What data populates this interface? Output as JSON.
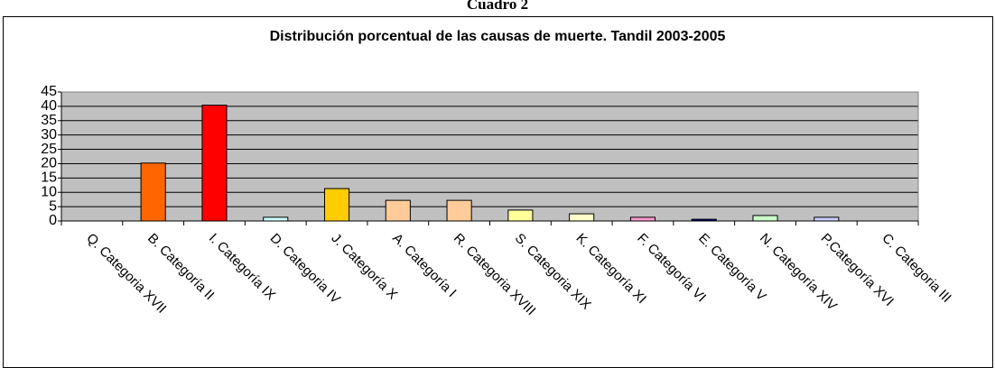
{
  "header": "Cuadro 2",
  "chart_data": {
    "type": "bar",
    "title": "Distribución porcentual de las causas de muerte. Tandil 2003-2005",
    "categories": [
      "Q. Categoria XVII",
      "B. Categoría II",
      "I. Categoría IX",
      "D. Categoria IV",
      "J. Categoría X",
      "A. Categoría I",
      "R. Categoria XVIII",
      "S. Categoria XIX",
      "K. Categoría XI",
      "F. Categoría VI",
      "E. Categoría V",
      "N. Categoría XIV",
      "P.Categoría XVI",
      "C. Categoria III"
    ],
    "values": [
      0,
      20.2,
      40.4,
      1.3,
      11.3,
      7.2,
      7.2,
      3.8,
      2.5,
      1.3,
      0.6,
      1.9,
      1.3,
      0
    ],
    "colors": [
      "#993366",
      "#ff6600",
      "#ff0000",
      "#ccffff",
      "#ffcc00",
      "#ffcc99",
      "#ffcc99",
      "#ffff99",
      "#ffffcc",
      "#ff99cc",
      "#000080",
      "#ccffcc",
      "#ccccff",
      "#99ccff"
    ],
    "ylim": [
      0,
      45
    ],
    "yticks": [
      0,
      5,
      10,
      15,
      20,
      25,
      30,
      35,
      40,
      45
    ],
    "grid": true
  }
}
